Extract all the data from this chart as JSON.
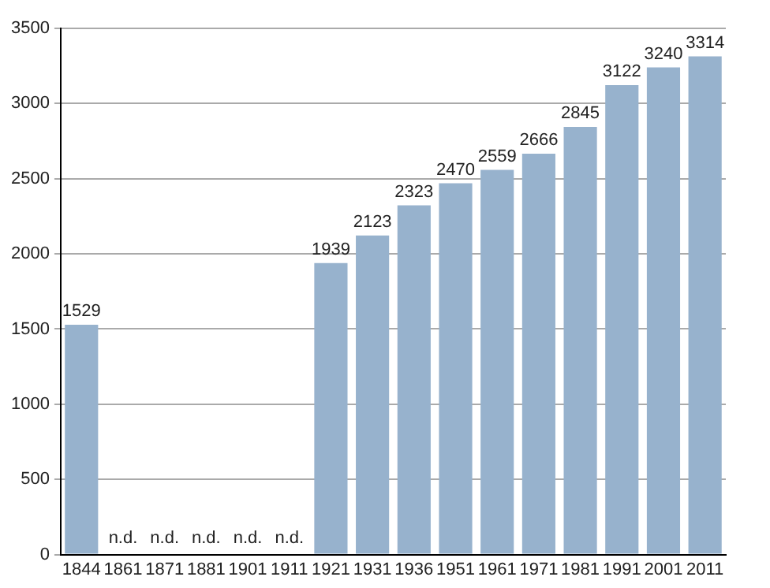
{
  "chart_data": {
    "type": "bar",
    "categories": [
      "1844",
      "1861",
      "1871",
      "1881",
      "1901",
      "1911",
      "1921",
      "1931",
      "1936",
      "1951",
      "1961",
      "1971",
      "1981",
      "1991",
      "2001",
      "2011"
    ],
    "values": [
      1529,
      null,
      null,
      null,
      null,
      null,
      1939,
      2123,
      2323,
      2470,
      2559,
      2666,
      2845,
      3122,
      3240,
      3314
    ],
    "color": "#97b2cd",
    "value_labels": [
      "1529",
      "n.d.",
      "n.d.",
      "n.d.",
      "n.d.",
      "n.d.",
      "1939",
      "2123",
      "2323",
      "2470",
      "2559",
      "2666",
      "2845",
      "3122",
      "3240",
      "3314"
    ],
    "ylim": [
      0,
      3500
    ],
    "yticks": [
      0,
      500,
      1000,
      1500,
      2000,
      2500,
      3000,
      3500
    ],
    "grid": "y"
  }
}
